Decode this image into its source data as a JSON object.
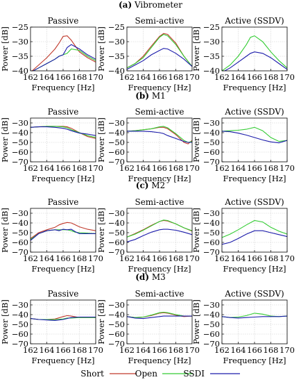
{
  "legend": {
    "entries": [
      {
        "label": "Short",
        "color": "#c0392b"
      },
      {
        "label": "Open",
        "color": "#33cc33"
      },
      {
        "label": "SSDI",
        "color": "#1a1aaa"
      }
    ]
  },
  "chart_data": [
    {
      "type": "line",
      "group": "Vibrometer",
      "group_label": "(a)",
      "title": "Passive",
      "xlabel": "Frequency [Hz]",
      "ylabel": "Power [dB]",
      "xlim": [
        162,
        170
      ],
      "ylim": [
        -40,
        -25
      ],
      "xticks": [
        162,
        164,
        166,
        168,
        170
      ],
      "yticks": [
        -40,
        -35,
        -30,
        -25
      ],
      "x": [
        162,
        163,
        164,
        165,
        165.5,
        166,
        166.5,
        167,
        168,
        169,
        170
      ],
      "series": [
        {
          "name": "Short",
          "color": "#c0392b",
          "values": [
            -40.5,
            -38,
            -35.5,
            -32.5,
            -30.5,
            -28.2,
            -28,
            -29.5,
            -33.5,
            -35.5,
            -37
          ]
        },
        {
          "name": "Open",
          "color": "#33cc33",
          "values": [
            -40.5,
            -39,
            -37.5,
            -36,
            -35,
            -34.5,
            -34,
            -32.5,
            -33,
            -35,
            -36.5
          ]
        },
        {
          "name": "SSDI",
          "color": "#1a1aaa",
          "values": [
            -40.5,
            -39,
            -37.5,
            -36,
            -35,
            -34.5,
            -32,
            -31,
            -32.5,
            -34.5,
            -36
          ]
        }
      ]
    },
    {
      "type": "line",
      "group": "Vibrometer",
      "group_label": "(a)",
      "title": "Semi-active",
      "xlabel": "Frequency [Hz]",
      "ylabel": "Power [dB]",
      "xlim": [
        162,
        170
      ],
      "ylim": [
        -40,
        -25
      ],
      "xticks": [
        162,
        164,
        166,
        168,
        170
      ],
      "yticks": [
        -40,
        -35,
        -30,
        -25
      ],
      "x": [
        162,
        163,
        164,
        165,
        166,
        166.5,
        167,
        168,
        169,
        170
      ],
      "series": [
        {
          "name": "Short",
          "color": "#c0392b",
          "values": [
            -39,
            -37.5,
            -35,
            -31.5,
            -28.2,
            -27.2,
            -27.5,
            -30.5,
            -35,
            -38.5
          ]
        },
        {
          "name": "Open",
          "color": "#33cc33",
          "values": [
            -39,
            -37.5,
            -35.5,
            -32,
            -28.5,
            -27.5,
            -28,
            -31,
            -35,
            -38.5
          ]
        },
        {
          "name": "SSDI",
          "color": "#1a1aaa",
          "values": [
            -39.5,
            -38,
            -36.5,
            -34.5,
            -33,
            -32.3,
            -32.5,
            -34,
            -36,
            -38.5
          ]
        }
      ]
    },
    {
      "type": "line",
      "group": "Vibrometer",
      "group_label": "(a)",
      "title": "Active (SSDV)",
      "xlabel": "Frequency [Hz]",
      "ylabel": "Power [dB]",
      "xlim": [
        162,
        170
      ],
      "ylim": [
        -40,
        -25
      ],
      "xticks": [
        162,
        164,
        166,
        168,
        170
      ],
      "yticks": [
        -40,
        -35,
        -30,
        -25
      ],
      "x": [
        162,
        163,
        164,
        165,
        165.5,
        166,
        167,
        168,
        169,
        170
      ],
      "series": [
        {
          "name": "Open",
          "color": "#33cc33",
          "values": [
            -40,
            -38,
            -35,
            -31,
            -28.5,
            -28,
            -30,
            -33.5,
            -36.5,
            -39
          ]
        },
        {
          "name": "SSDI",
          "color": "#1a1aaa",
          "values": [
            -40.5,
            -39,
            -37,
            -35,
            -34,
            -33.5,
            -34,
            -35.5,
            -37.5,
            -39.5
          ]
        }
      ]
    },
    {
      "type": "line",
      "group": "M1",
      "group_label": "(b)",
      "title": "Passive",
      "xlabel": "Frequency [Hz]",
      "ylabel": "Power [dB]",
      "xlim": [
        162,
        170
      ],
      "ylim": [
        -70,
        -25
      ],
      "xticks": [
        162,
        164,
        166,
        168,
        170
      ],
      "yticks": [
        -70,
        -60,
        -50,
        -40,
        -30
      ],
      "x": [
        162,
        163,
        164,
        165,
        166,
        166.5,
        167,
        168,
        169,
        170
      ],
      "series": [
        {
          "name": "Short",
          "color": "#c0392b",
          "values": [
            -34.5,
            -34,
            -33.5,
            -33.5,
            -33.5,
            -34,
            -35.5,
            -40,
            -44,
            -46
          ]
        },
        {
          "name": "Open",
          "color": "#33cc33",
          "values": [
            -34.5,
            -34,
            -33.5,
            -33.5,
            -34,
            -35,
            -37,
            -40,
            -43,
            -45
          ]
        },
        {
          "name": "SSDI",
          "color": "#1a1aaa",
          "values": [
            -34.5,
            -34,
            -34,
            -34.5,
            -35.5,
            -36.5,
            -38,
            -40.5,
            -41.5,
            -43
          ]
        }
      ]
    },
    {
      "type": "line",
      "group": "M1",
      "group_label": "(b)",
      "title": "Semi-active",
      "xlabel": "Frequency [Hz]",
      "ylabel": "Power [dB]",
      "xlim": [
        162,
        170
      ],
      "ylim": [
        -70,
        -25
      ],
      "xticks": [
        162,
        164,
        166,
        168,
        170
      ],
      "yticks": [
        -70,
        -60,
        -50,
        -40,
        -30
      ],
      "x": [
        162,
        163,
        164,
        165,
        166,
        166.5,
        167,
        168,
        169,
        169.5,
        170
      ],
      "series": [
        {
          "name": "Short",
          "color": "#c0392b",
          "values": [
            -38.5,
            -38,
            -37,
            -36,
            -34.5,
            -34.5,
            -36,
            -42,
            -50,
            -51.5,
            -48
          ]
        },
        {
          "name": "Open",
          "color": "#33cc33",
          "values": [
            -38.5,
            -38,
            -37,
            -36,
            -34,
            -33.5,
            -35,
            -41,
            -48,
            -50,
            -49
          ]
        },
        {
          "name": "SSDI",
          "color": "#1a1aaa",
          "values": [
            -38.5,
            -38.5,
            -38.5,
            -39,
            -40,
            -41,
            -43,
            -46,
            -49,
            -50,
            -50
          ]
        }
      ]
    },
    {
      "type": "line",
      "group": "M1",
      "group_label": "(b)",
      "title": "Active (SSDV)",
      "xlabel": "Frequency [Hz]",
      "ylabel": "Power [dB]",
      "xlim": [
        162,
        170
      ],
      "ylim": [
        -70,
        -25
      ],
      "xticks": [
        162,
        164,
        166,
        168,
        170
      ],
      "yticks": [
        -70,
        -60,
        -50,
        -40,
        -30
      ],
      "x": [
        162,
        163,
        164,
        165,
        166,
        167,
        168,
        169,
        170
      ],
      "series": [
        {
          "name": "Open",
          "color": "#33cc33",
          "values": [
            -38.5,
            -38,
            -37.5,
            -36.5,
            -34.5,
            -38,
            -45,
            -49,
            -48
          ]
        },
        {
          "name": "SSDI",
          "color": "#1a1aaa",
          "values": [
            -38.5,
            -39,
            -40.5,
            -42.5,
            -45,
            -47.5,
            -49.5,
            -50.5,
            -48
          ]
        }
      ]
    },
    {
      "type": "line",
      "group": "M2",
      "group_label": "(c)",
      "title": "Passive",
      "xlabel": "Frequency [Hz]",
      "ylabel": "Power [dB]",
      "xlim": [
        162,
        170
      ],
      "ylim": [
        -70,
        -25
      ],
      "xticks": [
        162,
        164,
        166,
        168,
        170
      ],
      "yticks": [
        -70,
        -60,
        -50,
        -40,
        -30
      ],
      "x": [
        162,
        163,
        164,
        165,
        165.5,
        166,
        166.5,
        167,
        167.5,
        168,
        169,
        170
      ],
      "series": [
        {
          "name": "Short",
          "color": "#c0392b",
          "values": [
            -56,
            -50,
            -47,
            -44.5,
            -42,
            -40.5,
            -39.5,
            -40,
            -42,
            -44,
            -46.5,
            -48
          ]
        },
        {
          "name": "Open",
          "color": "#33cc33",
          "values": [
            -57,
            -51,
            -48,
            -47,
            -47,
            -47,
            -47,
            -48,
            -49.5,
            -50,
            -50.5,
            -51
          ]
        },
        {
          "name": "SSDI",
          "color": "#1a1aaa",
          "values": [
            -58,
            -51,
            -48,
            -47,
            -48,
            -46.5,
            -47,
            -46.5,
            -49,
            -51,
            -51,
            -51
          ]
        }
      ]
    },
    {
      "type": "line",
      "group": "M2",
      "group_label": "(c)",
      "title": "Semi-active",
      "xlabel": "Frequency [Hz]",
      "ylabel": "Power [dB]",
      "xlim": [
        162,
        170
      ],
      "ylim": [
        -70,
        -25
      ],
      "xticks": [
        162,
        164,
        166,
        168,
        170
      ],
      "yticks": [
        -70,
        -60,
        -50,
        -40,
        -30
      ],
      "x": [
        162,
        163,
        164,
        165,
        166,
        166.5,
        167,
        168,
        169,
        170
      ],
      "series": [
        {
          "name": "Short",
          "color": "#c0392b",
          "values": [
            -54.5,
            -51,
            -47,
            -42.5,
            -38.5,
            -37.5,
            -38,
            -41,
            -45,
            -48.5
          ]
        },
        {
          "name": "Open",
          "color": "#33cc33",
          "values": [
            -54.5,
            -51.5,
            -47.5,
            -43,
            -38.5,
            -37,
            -37.5,
            -41,
            -45,
            -48
          ]
        },
        {
          "name": "SSDI",
          "color": "#1a1aaa",
          "values": [
            -59.5,
            -57,
            -53,
            -49.5,
            -47,
            -46.5,
            -46.5,
            -47.5,
            -49.5,
            -52
          ]
        }
      ]
    },
    {
      "type": "line",
      "group": "M2",
      "group_label": "(c)",
      "title": "Active (SSDV)",
      "xlabel": "Frequency [Hz]",
      "ylabel": "Power [dB]",
      "xlim": [
        162,
        170
      ],
      "ylim": [
        -70,
        -25
      ],
      "xticks": [
        162,
        164,
        166,
        168,
        170
      ],
      "yticks": [
        -70,
        -60,
        -50,
        -40,
        -30
      ],
      "x": [
        162,
        163,
        164,
        165,
        166,
        167,
        168,
        169,
        170
      ],
      "series": [
        {
          "name": "Open",
          "color": "#33cc33",
          "values": [
            -55,
            -51.5,
            -47,
            -42,
            -37.5,
            -39,
            -44.5,
            -48.5,
            -51.5
          ]
        },
        {
          "name": "SSDI",
          "color": "#1a1aaa",
          "values": [
            -62,
            -60,
            -56,
            -51.5,
            -48,
            -48,
            -50,
            -52,
            -54
          ]
        }
      ]
    },
    {
      "type": "line",
      "group": "M3",
      "group_label": "(d)",
      "title": "Passive",
      "xlabel": "Frequency [Hz]",
      "ylabel": "Power [dB]",
      "xlim": [
        162,
        170
      ],
      "ylim": [
        -70,
        -25
      ],
      "xticks": [
        162,
        164,
        166,
        168,
        170
      ],
      "yticks": [
        -70,
        -60,
        -50,
        -40,
        -30
      ],
      "x": [
        162,
        163,
        164,
        165,
        166,
        166.5,
        167,
        168,
        169,
        170
      ],
      "series": [
        {
          "name": "Short",
          "color": "#c0392b",
          "values": [
            -44,
            -45,
            -45,
            -44.5,
            -42,
            -41,
            -41.5,
            -43,
            -43,
            -43
          ]
        },
        {
          "name": "Open",
          "color": "#33cc33",
          "values": [
            -44,
            -45,
            -45,
            -45,
            -44.5,
            -43.5,
            -43.5,
            -43,
            -43,
            -43
          ]
        },
        {
          "name": "SSDI",
          "color": "#1a1aaa",
          "values": [
            -44,
            -45,
            -45.5,
            -46,
            -45,
            -44,
            -43,
            -42.5,
            -42.5,
            -42.5
          ]
        }
      ]
    },
    {
      "type": "line",
      "group": "M3",
      "group_label": "(d)",
      "title": "Semi-active",
      "xlabel": "Frequency [Hz]",
      "ylabel": "Power [dB]",
      "xlim": [
        162,
        170
      ],
      "ylim": [
        -70,
        -25
      ],
      "xticks": [
        162,
        164,
        166,
        168,
        170
      ],
      "yticks": [
        -70,
        -60,
        -50,
        -40,
        -30
      ],
      "x": [
        162,
        163,
        164,
        165,
        166,
        166.5,
        167,
        168,
        169,
        170
      ],
      "series": [
        {
          "name": "Short",
          "color": "#c0392b",
          "values": [
            -42,
            -43,
            -42.5,
            -41,
            -38.5,
            -38,
            -38.5,
            -40.5,
            -42,
            -41.5
          ]
        },
        {
          "name": "Open",
          "color": "#33cc33",
          "values": [
            -42,
            -43,
            -42.5,
            -40.5,
            -38,
            -37.5,
            -38,
            -40,
            -41.5,
            -41.5
          ]
        },
        {
          "name": "SSDI",
          "color": "#1a1aaa",
          "values": [
            -42,
            -43.5,
            -44,
            -43,
            -42,
            -41.5,
            -41.5,
            -41.5,
            -41.5,
            -41.5
          ]
        }
      ]
    },
    {
      "type": "line",
      "group": "M3",
      "group_label": "(d)",
      "title": "Active (SSDV)",
      "xlabel": "Frequency [Hz]",
      "ylabel": "Power [dB]",
      "xlim": [
        162,
        170
      ],
      "ylim": [
        -70,
        -25
      ],
      "xticks": [
        162,
        164,
        166,
        168,
        170
      ],
      "yticks": [
        -70,
        -60,
        -50,
        -40,
        -30
      ],
      "x": [
        162,
        163,
        164,
        165,
        166,
        167,
        168,
        169,
        170
      ],
      "series": [
        {
          "name": "Open",
          "color": "#33cc33",
          "values": [
            -42,
            -43,
            -42.5,
            -41,
            -38.5,
            -39.5,
            -41.5,
            -42,
            -41.5
          ]
        },
        {
          "name": "SSDI",
          "color": "#1a1aaa",
          "values": [
            -42,
            -43,
            -43.5,
            -43,
            -42.5,
            -42,
            -42,
            -42,
            -41.5
          ]
        }
      ]
    }
  ]
}
